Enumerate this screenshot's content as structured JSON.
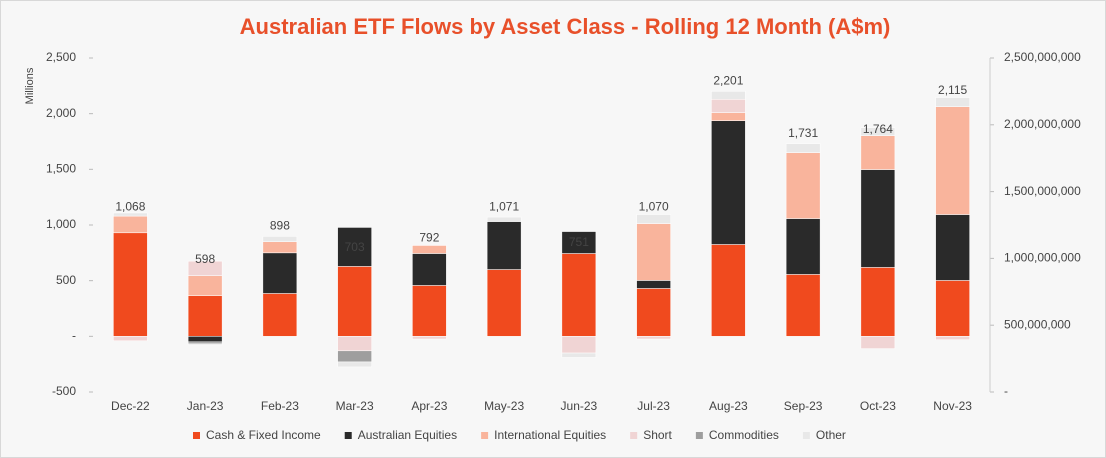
{
  "chart_data": {
    "type": "stacked_bar",
    "title": "Australian ETF Flows by Asset Class - Rolling 12 Month (A$m)",
    "y_label": "Millions",
    "categories": [
      "Dec-22",
      "Jan-23",
      "Feb-23",
      "Mar-23",
      "Apr-23",
      "May-23",
      "Jun-23",
      "Jul-23",
      "Aug-23",
      "Sep-23",
      "Oct-23",
      "Nov-23"
    ],
    "series": [
      {
        "name": "Cash & Fixed Income",
        "color": "#f04a1e",
        "values": [
          930,
          365,
          385,
          628,
          457,
          600,
          744,
          430,
          825,
          556,
          619,
          502
        ]
      },
      {
        "name": "Australian Equities",
        "color": "#2a2a2a",
        "values": [
          0,
          -50,
          365,
          350,
          287,
          431,
          197,
          72,
          1112,
          502,
          879,
          592
        ]
      },
      {
        "name": "International Equities",
        "color": "#f9b49c",
        "values": [
          150,
          180,
          100,
          0,
          72,
          0,
          0,
          511,
          72,
          592,
          304,
          969
        ]
      },
      {
        "name": "Short",
        "color": "#f0d4d4",
        "values": [
          -40,
          130,
          0,
          -130,
          -24,
          0,
          -150,
          -24,
          120,
          0,
          -110,
          -30
        ]
      },
      {
        "name": "Commodities",
        "color": "#9e9e9e",
        "values": [
          0,
          -17,
          0,
          -100,
          0,
          0,
          0,
          0,
          0,
          0,
          0,
          0
        ]
      },
      {
        "name": "Other",
        "color": "#e8e8e8",
        "values": [
          28,
          -10,
          48,
          -45,
          0,
          40,
          -40,
          81,
          72,
          81,
          72,
          82
        ]
      }
    ],
    "totals": {
      "values": [
        1068,
        598,
        898,
        703,
        792,
        1071,
        751,
        1070,
        2201,
        1731,
        1764,
        2115
      ],
      "value_labels": [
        "1,068",
        "598",
        "898",
        "703",
        "792",
        "1,071",
        "751",
        "1,070",
        "2,201",
        "1,731",
        "1,764",
        "2,115"
      ]
    },
    "ylim": [
      -500,
      2500
    ],
    "yticks": [
      {
        "value": -500,
        "label": "-500"
      },
      {
        "value": 0,
        "label": "-"
      },
      500,
      {
        "value": 1000,
        "label": "1,000"
      },
      {
        "value": 1500,
        "label": "1,500"
      },
      {
        "value": 2000,
        "label": "2,000"
      },
      {
        "value": 2500,
        "label": "2,500"
      }
    ],
    "y2lim": [
      0,
      2500000000
    ],
    "y2ticks": [
      {
        "value": 0,
        "label": "-"
      },
      {
        "value": 500000000,
        "label": "500,000,000"
      },
      {
        "value": 1000000000,
        "label": "1,000,000,000"
      },
      {
        "value": 1500000000,
        "label": "1,500,000,000"
      },
      {
        "value": 2000000000,
        "label": "2,000,000,000"
      },
      {
        "value": 2500000000,
        "label": "2,500,000,000"
      }
    ],
    "legend": "bottom"
  }
}
